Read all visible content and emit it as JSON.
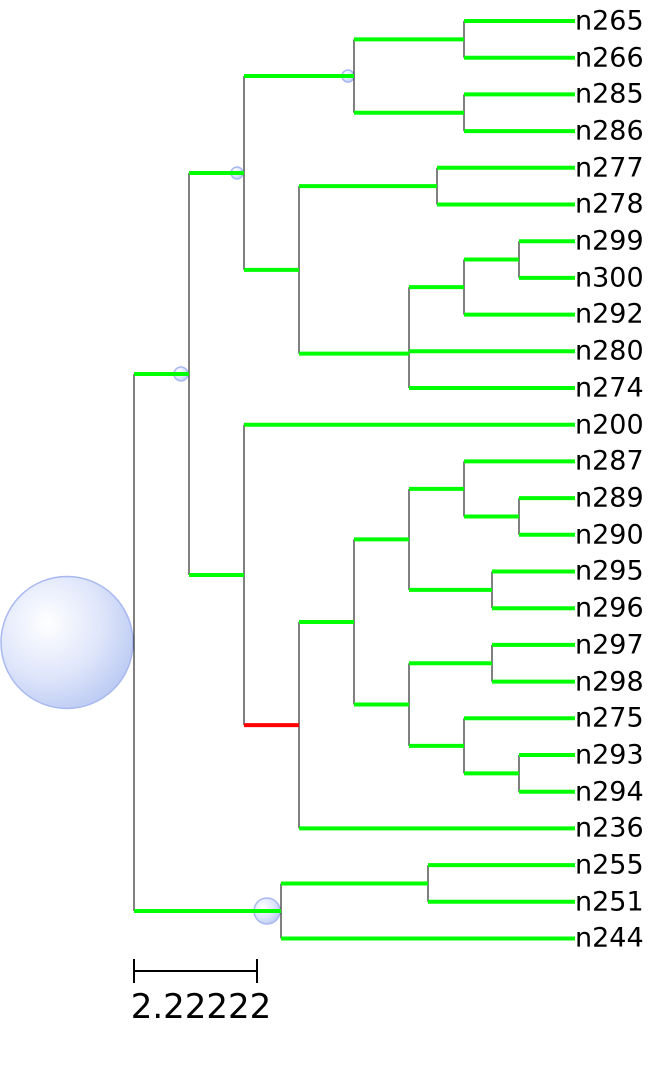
{
  "tree": {
    "leaves": [
      "n265",
      "n266",
      "n285",
      "n286",
      "n277",
      "n278",
      "n299",
      "n300",
      "n292",
      "n280",
      "n274",
      "n200",
      "n287",
      "n289",
      "n290",
      "n295",
      "n296",
      "n297",
      "n298",
      "n275",
      "n293",
      "n294",
      "n236",
      "n255",
      "n251",
      "n244"
    ],
    "colors": {
      "branch": "#00ff00",
      "highlighted_branch": "#ff0000",
      "connector": "#000000",
      "node_marker": "#a9b9f0"
    },
    "highlighted_branch_leaf_group": [
      "n287",
      "n289",
      "n290",
      "n295",
      "n296",
      "n297",
      "n298",
      "n275",
      "n293",
      "n294",
      "n236"
    ]
  },
  "scale_bar": {
    "label": "2.22222"
  }
}
